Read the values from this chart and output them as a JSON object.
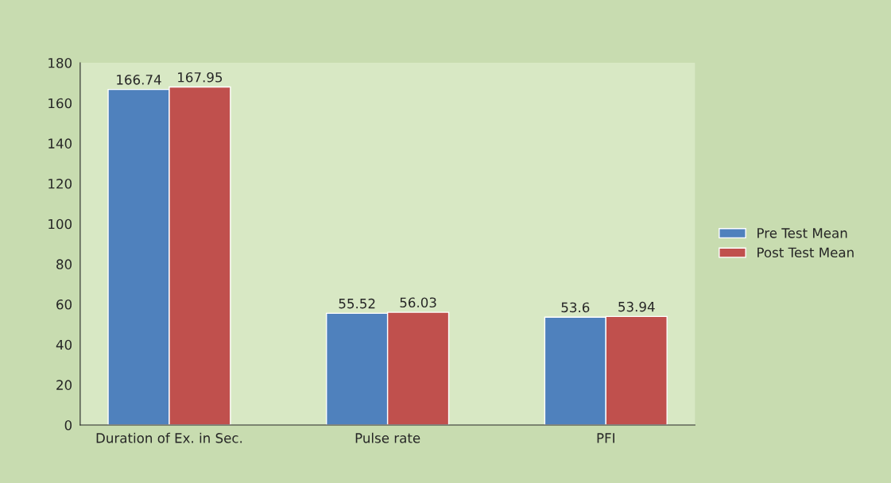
{
  "chart_data": {
    "type": "bar",
    "categories": [
      "Duration of Ex. in Sec.",
      "Pulse rate",
      "PFI"
    ],
    "series": [
      {
        "name": "Pre Test Mean",
        "color": "#4f81bd",
        "values": [
          166.74,
          55.52,
          53.6
        ]
      },
      {
        "name": "Post Test Mean",
        "color": "#c0504d",
        "values": [
          167.95,
          56.03,
          53.94
        ]
      }
    ],
    "ylim": [
      0,
      180
    ],
    "yticks": [
      0,
      20,
      40,
      60,
      80,
      100,
      120,
      140,
      160,
      180
    ],
    "data_labels": true,
    "legend": "right",
    "grid": false
  }
}
